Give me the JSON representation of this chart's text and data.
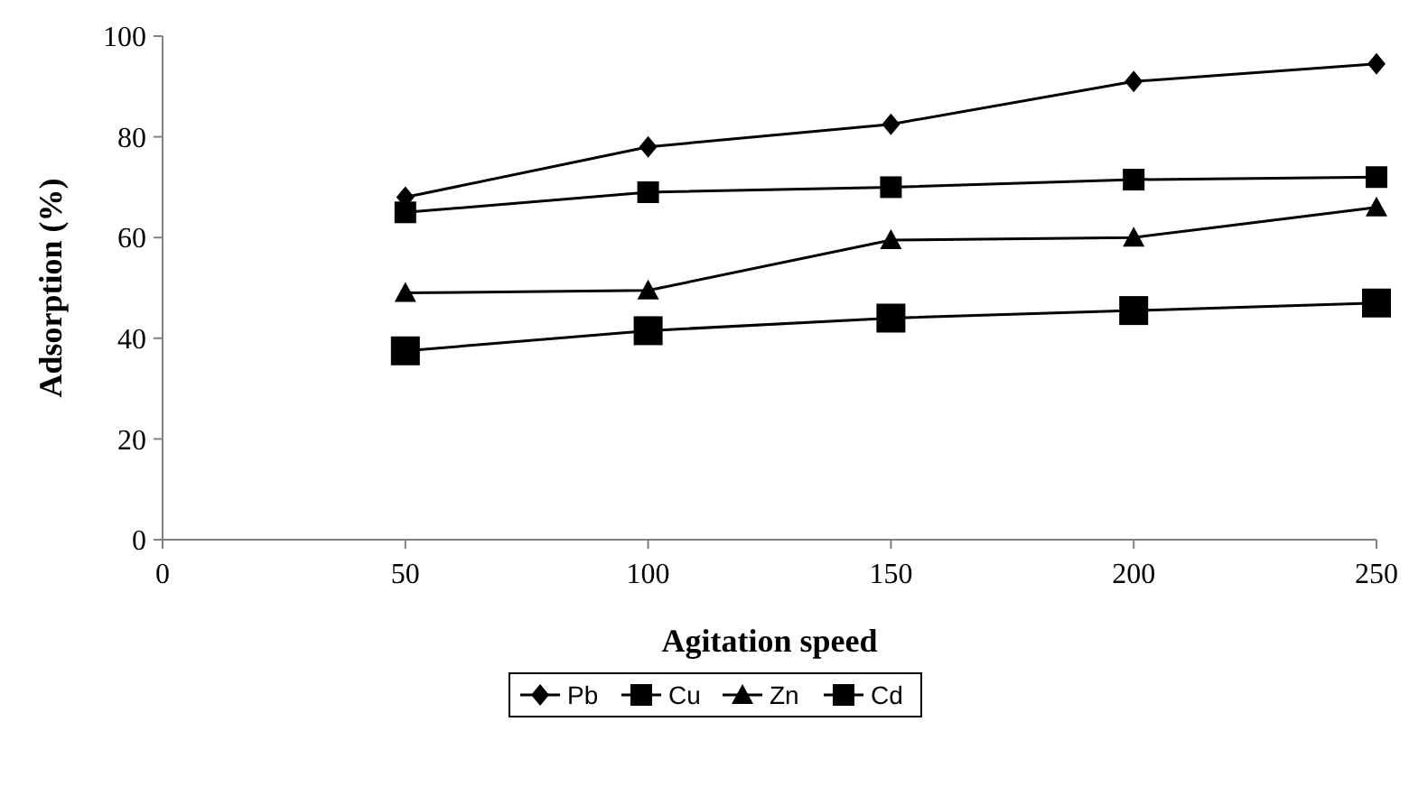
{
  "chart_data": {
    "type": "line",
    "xlabel": "Agitation speed",
    "ylabel": "Adsorption (%)",
    "x": [
      50,
      100,
      150,
      200,
      250
    ],
    "series": [
      {
        "name": "Pb",
        "color": "#000000",
        "marker": "diamond",
        "values": [
          68,
          78,
          82.5,
          91,
          94.5
        ]
      },
      {
        "name": "Cu",
        "color": "#000000",
        "marker": "square",
        "values": [
          65,
          69,
          70,
          71.5,
          72
        ]
      },
      {
        "name": "Zn",
        "color": "#000000",
        "marker": "triangle",
        "values": [
          49,
          49.5,
          59.5,
          60,
          66
        ]
      },
      {
        "name": "Cd",
        "color": "#000000",
        "marker": "square",
        "values": [
          37.5,
          41.5,
          44,
          45.5,
          47
        ]
      }
    ],
    "xlim": [
      0,
      250
    ],
    "xticks": [
      0,
      50,
      100,
      150,
      200,
      250
    ],
    "ylim": [
      0,
      100
    ],
    "yticks": [
      0,
      20,
      40,
      60,
      80,
      100
    ],
    "grid": false,
    "legend": "bottom",
    "line_style": "solid"
  }
}
